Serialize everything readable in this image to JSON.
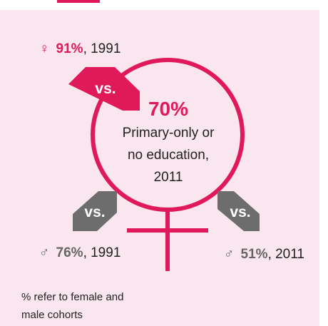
{
  "female": {
    "symbol": "♀",
    "percent": "91%",
    "rest": ", 1991"
  },
  "center": {
    "percent": "70%",
    "line1": "Primary-only or",
    "line2": "no education,",
    "line3": "2011"
  },
  "male_left": {
    "symbol": "♂",
    "percent": "76%",
    "rest": ", 1991"
  },
  "male_right": {
    "symbol": "♂",
    "percent": "51%",
    "rest": ", 2011"
  },
  "vs_labels": {
    "top": "vs.",
    "left": "vs.",
    "right": "vs."
  },
  "note": {
    "line1": "% refer to female and",
    "line2": "male cohorts"
  },
  "colors": {
    "accent": "#e0195a",
    "grey": "#666666",
    "background": "#f9e6ee"
  }
}
